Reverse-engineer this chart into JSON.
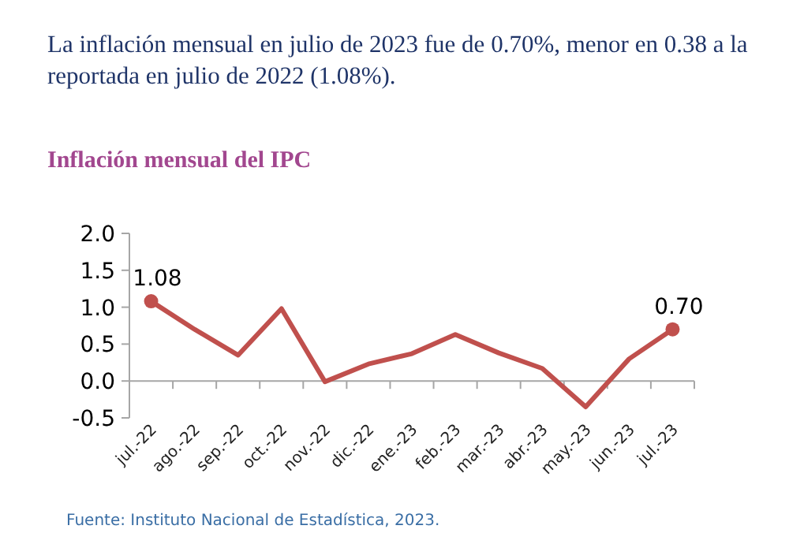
{
  "chart_data": {
    "type": "line",
    "title": "Inflación mensual del IPC",
    "annotations": [
      "La inflación mensual en julio de 2023 fue de 0.70%, menor en 0.38 a la reportada en julio de 2022 (1.08%).",
      "Fuente: Instituto Nacional de Estadística, 2023."
    ],
    "categories": [
      "jul.-22",
      "ago.-22",
      "sep.-22",
      "oct.-22",
      "nov.-22",
      "dic.-22",
      "ene.-23",
      "feb.-23",
      "mar.-23",
      "abr.-23",
      "may.-23",
      "jun.-23",
      "jul.-23"
    ],
    "series": [
      {
        "color": "#c0504d",
        "values": [
          1.08,
          0.7,
          0.35,
          0.98,
          -0.01,
          0.23,
          0.37,
          0.63,
          0.38,
          0.17,
          -0.35,
          0.3,
          0.7
        ],
        "marker": "none"
      },
      {
        "type": "scatter",
        "color": "#c0504d",
        "x": [
          "jul.-22",
          "jul.-23"
        ],
        "values": [
          1.08,
          0.7
        ],
        "value_labels": [
          "1.08",
          "0.70"
        ],
        "marker": "circle"
      }
    ],
    "ylim": [
      -0.5,
      2.0
    ],
    "yticks": [
      "-0.5",
      "0.0",
      "0.5",
      "1.0",
      "1.5",
      "2.0"
    ],
    "grid": false
  }
}
